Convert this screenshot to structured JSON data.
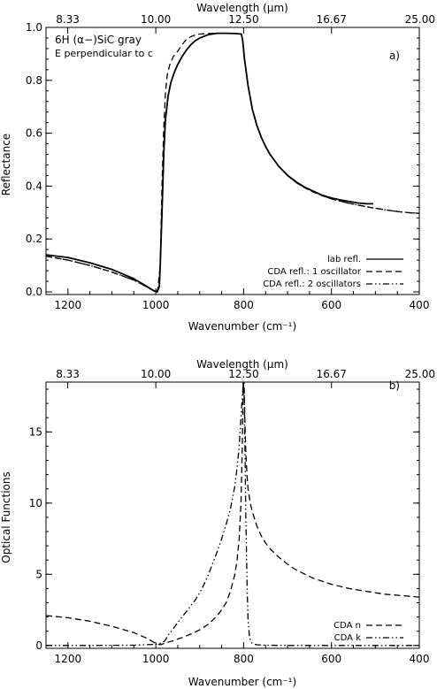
{
  "chart_data": [
    {
      "type": "line",
      "panel_label": "a)",
      "annotation_lines": [
        "6H (α−)SiC gray",
        "E perpendicular to c"
      ],
      "xlabel": "Wavenumber (cm⁻¹)",
      "ylabel": "Reflectance",
      "x2label": "Wavelength (μm)",
      "xlim": [
        1250,
        400
      ],
      "ylim": [
        -0.01,
        1.0
      ],
      "x_ticks": [
        1200,
        1000,
        800,
        600,
        400
      ],
      "y_ticks": [
        0.0,
        0.2,
        0.4,
        0.6,
        0.8,
        1.0
      ],
      "y_tick_labels": [
        "0.0",
        "0.2",
        "0.4",
        "0.6",
        "0.8",
        "1.0"
      ],
      "x2_ticks": [
        "8.33",
        "10.00",
        "12.50",
        "16.67",
        "25.00"
      ],
      "grid": false,
      "legend": "bottom-right",
      "series": [
        {
          "name": "lab refl.",
          "style": "solid",
          "x": [
            1250,
            1200,
            1150,
            1100,
            1050,
            1020,
            1005,
            998,
            992,
            990,
            986,
            982,
            978,
            972,
            966,
            958,
            950,
            940,
            930,
            920,
            910,
            900,
            880,
            860,
            840,
            820,
            805,
            802,
            798,
            790,
            780,
            770,
            760,
            750,
            740,
            720,
            700,
            680,
            660,
            640,
            620,
            600,
            580,
            560,
            540,
            520,
            505
          ],
          "y": [
            0.14,
            0.13,
            0.11,
            0.085,
            0.05,
            0.02,
            0.005,
            0.0,
            0.02,
            0.1,
            0.3,
            0.52,
            0.65,
            0.74,
            0.79,
            0.83,
            0.86,
            0.89,
            0.915,
            0.935,
            0.95,
            0.96,
            0.973,
            0.978,
            0.978,
            0.977,
            0.975,
            0.95,
            0.88,
            0.78,
            0.69,
            0.63,
            0.585,
            0.55,
            0.52,
            0.475,
            0.44,
            0.415,
            0.395,
            0.38,
            0.365,
            0.355,
            0.348,
            0.342,
            0.336,
            0.333,
            0.333
          ]
        },
        {
          "name": "CDA refl.: 1 oscillator",
          "style": "dashed",
          "x": [
            1250,
            1200,
            1150,
            1100,
            1050,
            1020,
            1005,
            996,
            990,
            986,
            982,
            978,
            974,
            968,
            960,
            950,
            940,
            930,
            920,
            910,
            900,
            880,
            860,
            840,
            820,
            805,
            802,
            798,
            790,
            780,
            770,
            760,
            750,
            740,
            720,
            700,
            680,
            660,
            640,
            620,
            600,
            580,
            560,
            540,
            520,
            500,
            480,
            460,
            440,
            420,
            400
          ],
          "y": [
            0.135,
            0.12,
            0.1,
            0.075,
            0.045,
            0.018,
            0.004,
            0.0,
            0.1,
            0.4,
            0.62,
            0.75,
            0.82,
            0.86,
            0.89,
            0.91,
            0.935,
            0.955,
            0.965,
            0.972,
            0.975,
            0.977,
            0.978,
            0.978,
            0.977,
            0.975,
            0.95,
            0.88,
            0.78,
            0.69,
            0.63,
            0.585,
            0.55,
            0.52,
            0.475,
            0.44,
            0.413,
            0.393,
            0.377,
            0.363,
            0.352,
            0.343,
            0.335,
            0.328,
            0.322,
            0.316,
            0.311,
            0.306,
            0.302,
            0.299,
            0.297
          ]
        },
        {
          "name": "CDA refl.: 2 oscillators",
          "style": "dash-dot-dot",
          "x": [
            1250,
            1200,
            1150,
            1100,
            1050,
            1020,
            1005,
            996,
            992,
            990,
            986,
            982,
            978,
            972,
            966,
            958,
            950,
            940,
            930,
            920,
            910,
            900,
            880,
            860,
            840,
            820,
            805,
            802,
            798,
            790,
            780,
            770,
            760,
            750,
            740,
            720,
            700,
            680,
            660,
            640,
            620,
            600,
            580,
            560,
            540,
            520,
            500,
            480,
            460,
            440,
            420,
            400
          ],
          "y": [
            0.135,
            0.12,
            0.1,
            0.075,
            0.045,
            0.018,
            0.004,
            0.0,
            0.02,
            0.1,
            0.3,
            0.52,
            0.65,
            0.74,
            0.79,
            0.83,
            0.86,
            0.89,
            0.915,
            0.935,
            0.95,
            0.96,
            0.973,
            0.978,
            0.978,
            0.977,
            0.975,
            0.95,
            0.88,
            0.78,
            0.69,
            0.63,
            0.585,
            0.55,
            0.52,
            0.475,
            0.44,
            0.413,
            0.393,
            0.377,
            0.363,
            0.352,
            0.343,
            0.335,
            0.328,
            0.322,
            0.316,
            0.311,
            0.306,
            0.302,
            0.299,
            0.297
          ]
        }
      ]
    },
    {
      "type": "line",
      "panel_label": "b)",
      "xlabel": "Wavenumber (cm⁻¹)",
      "ylabel": "Optical Functions",
      "x2label": "Wavelength (μm)",
      "xlim": [
        1250,
        400
      ],
      "ylim": [
        -0.2,
        18.5
      ],
      "x_ticks": [
        1200,
        1000,
        800,
        600,
        400
      ],
      "y_ticks": [
        0,
        5,
        10,
        15
      ],
      "x2_ticks": [
        "8.33",
        "10.00",
        "12.50",
        "16.67",
        "25.00"
      ],
      "grid": false,
      "legend": "bottom-right",
      "series": [
        {
          "name": "CDA n",
          "style": "dashed",
          "x": [
            1250,
            1200,
            1150,
            1100,
            1050,
            1020,
            1000,
            990,
            980,
            970,
            960,
            950,
            940,
            930,
            920,
            910,
            900,
            890,
            880,
            870,
            860,
            850,
            840,
            830,
            820,
            815,
            810,
            806,
            803,
            801,
            799,
            797,
            795,
            792,
            790,
            785,
            780,
            770,
            760,
            750,
            740,
            730,
            720,
            700,
            680,
            660,
            640,
            620,
            600,
            560,
            520,
            480,
            440,
            400
          ],
          "y": [
            2.1,
            1.95,
            1.7,
            1.35,
            0.9,
            0.5,
            0.15,
            0.05,
            0.15,
            0.25,
            0.33,
            0.45,
            0.55,
            0.68,
            0.8,
            0.95,
            1.1,
            1.3,
            1.5,
            1.8,
            2.1,
            2.5,
            3.0,
            3.8,
            5.0,
            6.0,
            7.5,
            10.0,
            14.0,
            18.5,
            18.5,
            15.5,
            13.5,
            11.8,
            11.0,
            10.0,
            9.4,
            8.4,
            7.7,
            7.2,
            6.8,
            6.5,
            6.2,
            5.7,
            5.3,
            5.0,
            4.7,
            4.5,
            4.3,
            4.0,
            3.8,
            3.6,
            3.5,
            3.4
          ]
        },
        {
          "name": "CDA k",
          "style": "dash-dot-dot",
          "x": [
            1250,
            1150,
            1050,
            1000,
            990,
            980,
            970,
            960,
            950,
            940,
            930,
            920,
            910,
            900,
            890,
            880,
            870,
            860,
            850,
            840,
            830,
            820,
            815,
            810,
            806,
            803,
            801,
            799,
            797,
            795,
            792,
            790,
            787,
            784,
            780,
            770,
            750,
            700,
            600,
            500,
            400
          ],
          "y": [
            0.0,
            0.0,
            0.02,
            0.08,
            0.15,
            0.3,
            0.8,
            1.2,
            1.6,
            2.0,
            2.4,
            2.8,
            3.2,
            3.7,
            4.3,
            5.0,
            5.8,
            6.6,
            7.5,
            8.5,
            9.6,
            11.2,
            12.5,
            14.0,
            16.0,
            17.5,
            18.3,
            18.0,
            14.0,
            9.0,
            4.0,
            1.8,
            0.7,
            0.3,
            0.12,
            0.05,
            0.02,
            0.0,
            0.0,
            0.0,
            0.0
          ]
        }
      ]
    }
  ]
}
